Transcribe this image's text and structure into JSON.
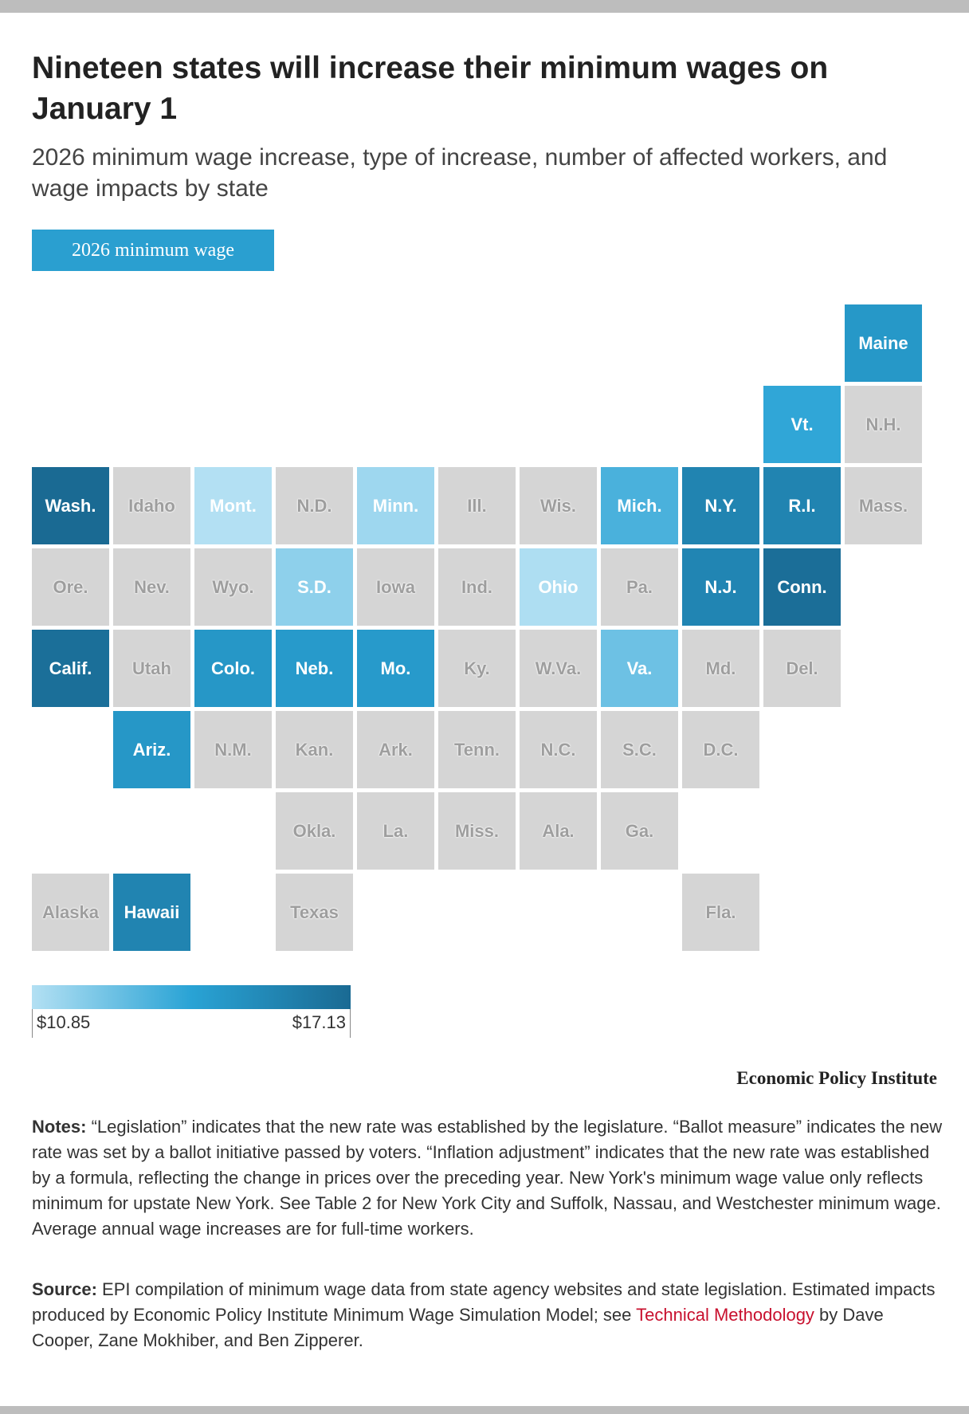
{
  "header": {
    "title": "Nineteen states will increase their minimum wages on January 1",
    "subtitle": "2026 minimum wage increase, type of increase, number of affected workers, and wage impacts by state"
  },
  "tabs": {
    "active_label": "2026 minimum wage"
  },
  "colors": {
    "no_data": "#d5d5d5",
    "scale_low": "#b3e0f3",
    "scale_mid": "#29a3d5",
    "scale_high": "#1a6a93",
    "link": "#c8102e"
  },
  "chart_data": {
    "type": "tile-map",
    "metric": "2026 minimum wage",
    "scale": {
      "min": 10.85,
      "max": 17.13
    },
    "tiles": [
      {
        "name": "Maine",
        "row": 0,
        "col": 10,
        "value": 15.1
      },
      {
        "name": "Vt.",
        "row": 1,
        "col": 9,
        "value": 14.42
      },
      {
        "name": "N.H.",
        "row": 1,
        "col": 10,
        "value": null
      },
      {
        "name": "Wash.",
        "row": 2,
        "col": 0,
        "value": 17.13
      },
      {
        "name": "Idaho",
        "row": 2,
        "col": 1,
        "value": null
      },
      {
        "name": "Mont.",
        "row": 2,
        "col": 2,
        "value": 10.85
      },
      {
        "name": "N.D.",
        "row": 2,
        "col": 3,
        "value": null
      },
      {
        "name": "Minn.",
        "row": 2,
        "col": 4,
        "value": 11.41
      },
      {
        "name": "Ill.",
        "row": 2,
        "col": 5,
        "value": null
      },
      {
        "name": "Wis.",
        "row": 2,
        "col": 6,
        "value": null
      },
      {
        "name": "Mich.",
        "row": 2,
        "col": 7,
        "value": 13.73
      },
      {
        "name": "N.Y.",
        "row": 2,
        "col": 8,
        "value": 16.0
      },
      {
        "name": "R.I.",
        "row": 2,
        "col": 9,
        "value": 16.0
      },
      {
        "name": "Mass.",
        "row": 2,
        "col": 10,
        "value": null
      },
      {
        "name": "Ore.",
        "row": 3,
        "col": 0,
        "value": null
      },
      {
        "name": "Nev.",
        "row": 3,
        "col": 1,
        "value": null
      },
      {
        "name": "Wyo.",
        "row": 3,
        "col": 2,
        "value": null
      },
      {
        "name": "S.D.",
        "row": 3,
        "col": 3,
        "value": 11.85
      },
      {
        "name": "Iowa",
        "row": 3,
        "col": 4,
        "value": null
      },
      {
        "name": "Ind.",
        "row": 3,
        "col": 5,
        "value": null
      },
      {
        "name": "Ohio",
        "row": 3,
        "col": 6,
        "value": 11.0
      },
      {
        "name": "Pa.",
        "row": 3,
        "col": 7,
        "value": null
      },
      {
        "name": "N.J.",
        "row": 3,
        "col": 8,
        "value": 15.92
      },
      {
        "name": "Conn.",
        "row": 3,
        "col": 9,
        "value": 16.94
      },
      {
        "name": "Calif.",
        "row": 4,
        "col": 0,
        "value": 16.9
      },
      {
        "name": "Utah",
        "row": 4,
        "col": 1,
        "value": null
      },
      {
        "name": "Colo.",
        "row": 4,
        "col": 2,
        "value": 15.16
      },
      {
        "name": "Neb.",
        "row": 4,
        "col": 3,
        "value": 15.0
      },
      {
        "name": "Mo.",
        "row": 4,
        "col": 4,
        "value": 15.0
      },
      {
        "name": "Ky.",
        "row": 4,
        "col": 5,
        "value": null
      },
      {
        "name": "W.Va.",
        "row": 4,
        "col": 6,
        "value": null
      },
      {
        "name": "Va.",
        "row": 4,
        "col": 7,
        "value": 12.77
      },
      {
        "name": "Md.",
        "row": 4,
        "col": 8,
        "value": null
      },
      {
        "name": "Del.",
        "row": 4,
        "col": 9,
        "value": null
      },
      {
        "name": "Ariz.",
        "row": 5,
        "col": 1,
        "value": 15.15
      },
      {
        "name": "N.M.",
        "row": 5,
        "col": 2,
        "value": null
      },
      {
        "name": "Kan.",
        "row": 5,
        "col": 3,
        "value": null
      },
      {
        "name": "Ark.",
        "row": 5,
        "col": 4,
        "value": null
      },
      {
        "name": "Tenn.",
        "row": 5,
        "col": 5,
        "value": null
      },
      {
        "name": "N.C.",
        "row": 5,
        "col": 6,
        "value": null
      },
      {
        "name": "S.C.",
        "row": 5,
        "col": 7,
        "value": null
      },
      {
        "name": "D.C.",
        "row": 5,
        "col": 8,
        "value": null
      },
      {
        "name": "Okla.",
        "row": 6,
        "col": 3,
        "value": null
      },
      {
        "name": "La.",
        "row": 6,
        "col": 4,
        "value": null
      },
      {
        "name": "Miss.",
        "row": 6,
        "col": 5,
        "value": null
      },
      {
        "name": "Ala.",
        "row": 6,
        "col": 6,
        "value": null
      },
      {
        "name": "Ga.",
        "row": 6,
        "col": 7,
        "value": null
      },
      {
        "name": "Alaska",
        "row": 7,
        "col": 0,
        "value": null
      },
      {
        "name": "Hawaii",
        "row": 7,
        "col": 1,
        "value": 16.0
      },
      {
        "name": "Texas",
        "row": 7,
        "col": 3,
        "value": null
      },
      {
        "name": "Fla.",
        "row": 7,
        "col": 8,
        "value": null
      }
    ]
  },
  "legend": {
    "min_label": "$10.85",
    "max_label": "$17.13"
  },
  "credit": "Economic Policy Institute",
  "notes": {
    "label": "Notes:",
    "text": " “Legislation” indicates that the new rate was established by the legislature. “Ballot measure” indicates the new rate was set by a ballot initiative passed by voters. “Inflation adjustment” indicates that the new rate was established by a formula, reflecting the change in prices over the preceding year. New York's minimum wage value only reflects minimum for upstate New York. See Table 2 for New York City and Suffolk, Nassau, and Westchester minimum wage. Average annual wage increases are for full-time workers."
  },
  "source": {
    "label": "Source:",
    "text_before": " EPI compilation of minimum wage data from state agency websites and state legislation. Estimated impacts produced by Economic Policy Institute Minimum Wage Simulation Model; see ",
    "link": "Technical Methodology",
    "text_after": " by Dave Cooper, Zane Mokhiber, and Ben Zipperer."
  }
}
